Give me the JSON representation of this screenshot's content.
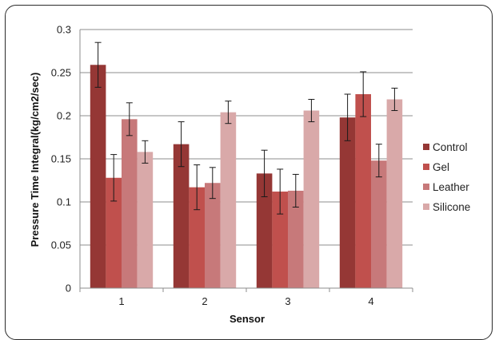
{
  "chart_data": {
    "type": "bar",
    "title": "",
    "xlabel": "Sensor",
    "ylabel": "Pressure Time Integral(kg/cm2/sec)",
    "categories": [
      "1",
      "2",
      "3",
      "4"
    ],
    "ylim": [
      0,
      0.3
    ],
    "yticks": [
      "0",
      "0.05",
      "0.1",
      "0.15",
      "0.2",
      "0.25",
      "0.3"
    ],
    "grid": "horizontal",
    "legend_position": "right",
    "series": [
      {
        "name": "Control",
        "color": "#953735",
        "values": [
          0.259,
          0.167,
          0.133,
          0.198
        ],
        "errors": [
          0.026,
          0.026,
          0.027,
          0.027
        ]
      },
      {
        "name": "Gel",
        "color": "#c0504d",
        "values": [
          0.128,
          0.117,
          0.112,
          0.225
        ],
        "errors": [
          0.027,
          0.026,
          0.026,
          0.026
        ]
      },
      {
        "name": "Leather",
        "color": "#c7797a",
        "values": [
          0.196,
          0.122,
          0.113,
          0.148
        ],
        "errors": [
          0.019,
          0.018,
          0.019,
          0.019
        ]
      },
      {
        "name": "Silicone",
        "color": "#d9a9a9",
        "values": [
          0.158,
          0.204,
          0.206,
          0.219
        ],
        "errors": [
          0.013,
          0.013,
          0.013,
          0.013
        ]
      }
    ]
  }
}
